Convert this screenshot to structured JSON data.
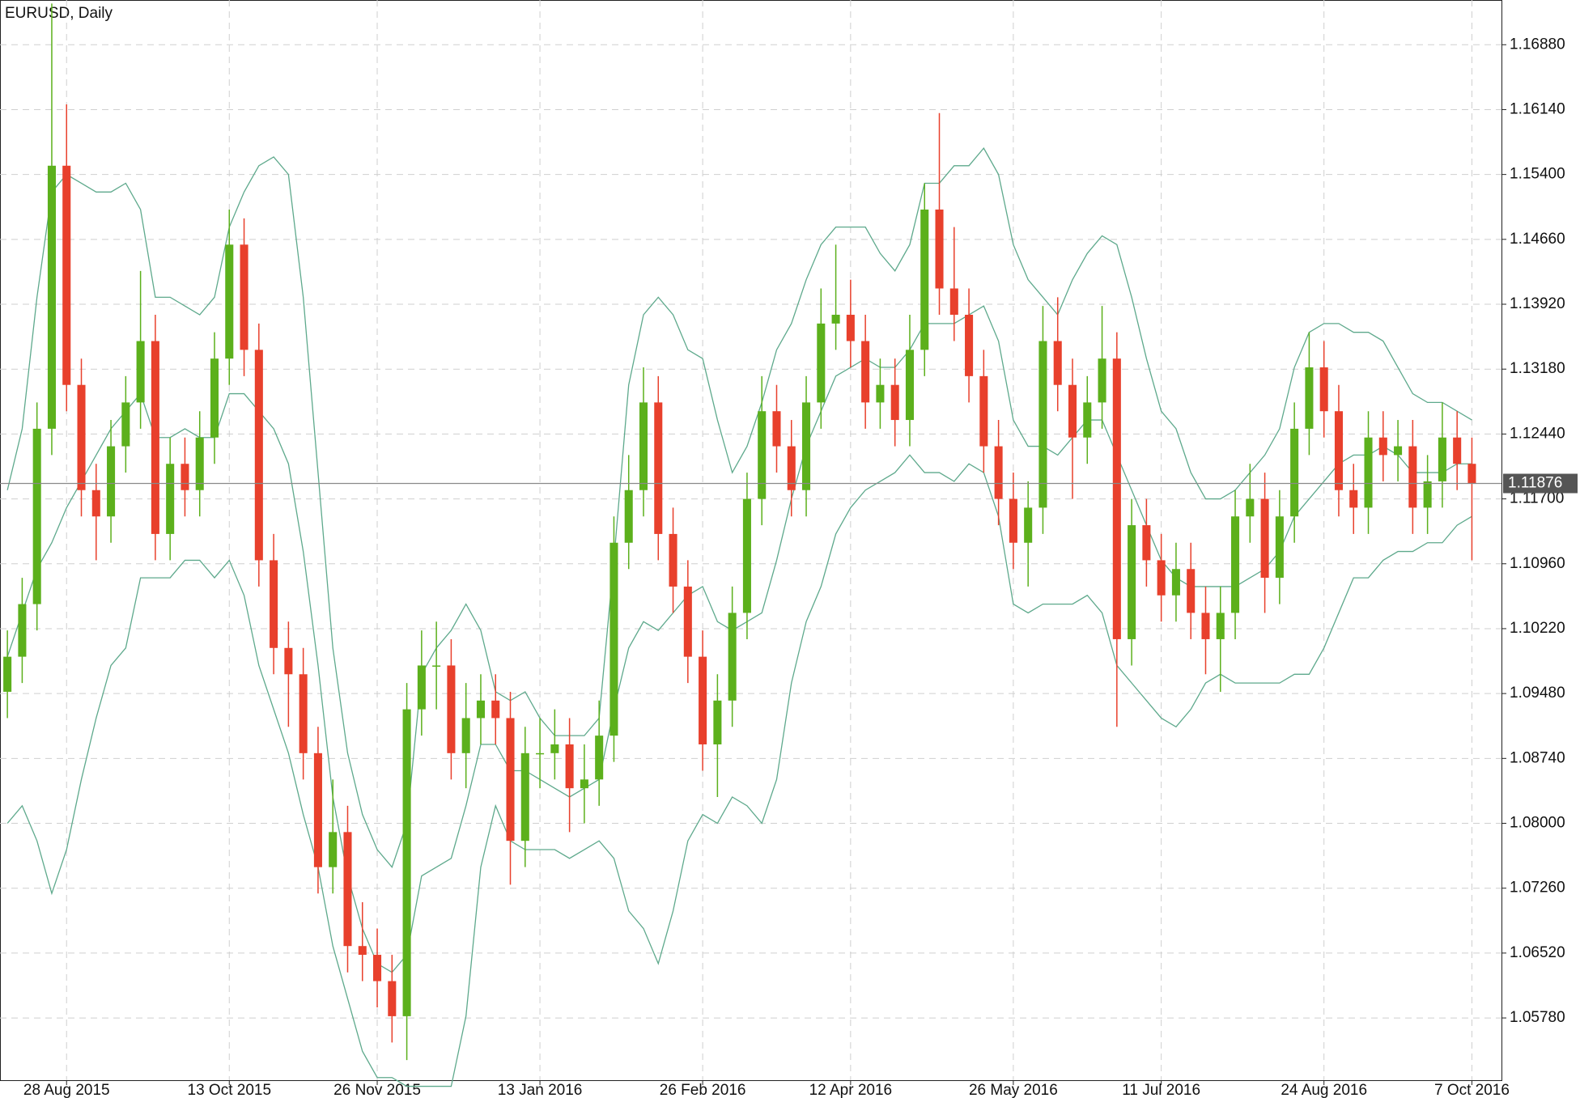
{
  "chart_data": {
    "type": "candlestick",
    "title": "EURUSD, Daily",
    "categories": [
      null,
      null,
      null,
      null,
      "28 Aug 2015",
      null,
      null,
      null,
      null,
      null,
      null,
      null,
      null,
      null,
      null,
      "13 Oct 2015",
      null,
      null,
      null,
      null,
      null,
      null,
      null,
      null,
      null,
      "26 Nov 2015",
      null,
      null,
      null,
      null,
      null,
      null,
      null,
      null,
      null,
      null,
      "13 Jan 2016",
      null,
      null,
      null,
      null,
      null,
      null,
      null,
      null,
      null,
      null,
      "26 Feb 2016",
      null,
      null,
      null,
      null,
      null,
      null,
      null,
      null,
      null,
      "12 Apr 2016",
      null,
      null,
      null,
      null,
      null,
      null,
      null,
      null,
      null,
      null,
      "26 May 2016",
      null,
      null,
      null,
      null,
      null,
      null,
      null,
      null,
      null,
      "11 Jul 2016",
      null,
      null,
      null,
      null,
      null,
      null,
      null,
      null,
      null,
      null,
      "24 Aug 2016",
      null,
      null,
      null,
      null,
      null,
      null,
      null,
      null,
      null,
      "7 Oct 2016"
    ],
    "open": [
      1.095,
      1.099,
      1.105,
      1.125,
      1.155,
      1.13,
      1.118,
      1.115,
      1.123,
      1.128,
      1.135,
      1.113,
      1.121,
      1.118,
      1.124,
      1.133,
      1.146,
      1.134,
      1.11,
      1.1,
      1.097,
      1.088,
      1.075,
      1.079,
      1.066,
      1.065,
      1.062,
      1.058,
      1.093,
      1.098,
      1.098,
      1.088,
      1.092,
      1.094,
      1.092,
      1.078,
      1.088,
      1.088,
      1.089,
      1.084,
      1.085,
      1.09,
      1.112,
      1.118,
      1.128,
      1.113,
      1.107,
      1.099,
      1.089,
      1.094,
      1.104,
      1.117,
      1.127,
      1.123,
      1.118,
      1.128,
      1.137,
      1.138,
      1.135,
      1.128,
      1.13,
      1.126,
      1.134,
      1.15,
      1.141,
      1.138,
      1.131,
      1.123,
      1.117,
      1.112,
      1.116,
      1.135,
      1.13,
      1.124,
      1.128,
      1.133,
      1.101,
      1.114,
      1.11,
      1.106,
      1.109,
      1.104,
      1.101,
      1.104,
      1.115,
      1.117,
      1.108,
      1.115,
      1.125,
      1.132,
      1.127,
      1.118,
      1.116,
      1.124,
      1.122,
      1.123,
      1.116,
      1.119,
      1.124,
      1.121
    ],
    "high": [
      1.102,
      1.108,
      1.128,
      1.1735,
      1.162,
      1.133,
      1.121,
      1.126,
      1.131,
      1.143,
      1.138,
      1.124,
      1.124,
      1.127,
      1.136,
      1.15,
      1.149,
      1.137,
      1.113,
      1.103,
      1.1,
      1.091,
      1.085,
      1.082,
      1.071,
      1.068,
      1.065,
      1.096,
      1.102,
      1.103,
      1.101,
      1.096,
      1.097,
      1.097,
      1.095,
      1.091,
      1.092,
      1.093,
      1.092,
      1.089,
      1.094,
      1.115,
      1.122,
      1.132,
      1.131,
      1.116,
      1.11,
      1.102,
      1.097,
      1.107,
      1.12,
      1.131,
      1.13,
      1.126,
      1.131,
      1.141,
      1.146,
      1.142,
      1.138,
      1.133,
      1.133,
      1.138,
      1.153,
      1.161,
      1.148,
      1.141,
      1.134,
      1.126,
      1.12,
      1.119,
      1.139,
      1.14,
      1.133,
      1.131,
      1.139,
      1.136,
      1.117,
      1.117,
      1.113,
      1.112,
      1.112,
      1.107,
      1.107,
      1.118,
      1.121,
      1.12,
      1.118,
      1.128,
      1.136,
      1.135,
      1.13,
      1.121,
      1.127,
      1.127,
      1.126,
      1.126,
      1.122,
      1.128,
      1.127,
      1.124
    ],
    "low": [
      1.092,
      1.096,
      1.102,
      1.122,
      1.127,
      1.115,
      1.11,
      1.112,
      1.12,
      1.125,
      1.11,
      1.11,
      1.115,
      1.115,
      1.121,
      1.13,
      1.131,
      1.107,
      1.097,
      1.091,
      1.085,
      1.072,
      1.072,
      1.063,
      1.062,
      1.059,
      1.055,
      1.053,
      1.09,
      1.093,
      1.085,
      1.084,
      1.089,
      1.089,
      1.073,
      1.075,
      1.084,
      1.085,
      1.079,
      1.08,
      1.082,
      1.087,
      1.109,
      1.115,
      1.11,
      1.104,
      1.096,
      1.086,
      1.083,
      1.091,
      1.101,
      1.114,
      1.12,
      1.115,
      1.115,
      1.125,
      1.134,
      1.132,
      1.125,
      1.125,
      1.123,
      1.123,
      1.131,
      1.138,
      1.135,
      1.128,
      1.12,
      1.114,
      1.109,
      1.107,
      1.113,
      1.127,
      1.117,
      1.121,
      1.125,
      1.091,
      1.098,
      1.107,
      1.103,
      1.103,
      1.101,
      1.097,
      1.095,
      1.101,
      1.112,
      1.104,
      1.105,
      1.112,
      1.122,
      1.124,
      1.115,
      1.113,
      1.113,
      1.119,
      1.119,
      1.113,
      1.113,
      1.116,
      1.118,
      1.11
    ],
    "close": [
      1.099,
      1.105,
      1.125,
      1.155,
      1.13,
      1.118,
      1.115,
      1.123,
      1.128,
      1.135,
      1.113,
      1.121,
      1.118,
      1.124,
      1.133,
      1.146,
      1.134,
      1.11,
      1.1,
      1.097,
      1.088,
      1.075,
      1.079,
      1.066,
      1.065,
      1.062,
      1.058,
      1.093,
      1.098,
      1.098,
      1.088,
      1.092,
      1.094,
      1.092,
      1.078,
      1.088,
      1.088,
      1.089,
      1.084,
      1.085,
      1.09,
      1.112,
      1.118,
      1.128,
      1.113,
      1.107,
      1.099,
      1.089,
      1.094,
      1.104,
      1.117,
      1.127,
      1.123,
      1.118,
      1.128,
      1.137,
      1.138,
      1.135,
      1.128,
      1.13,
      1.126,
      1.134,
      1.15,
      1.141,
      1.138,
      1.131,
      1.123,
      1.117,
      1.112,
      1.116,
      1.135,
      1.13,
      1.124,
      1.128,
      1.133,
      1.101,
      1.114,
      1.11,
      1.106,
      1.109,
      1.104,
      1.101,
      1.104,
      1.115,
      1.117,
      1.108,
      1.115,
      1.125,
      1.132,
      1.127,
      1.118,
      1.116,
      1.124,
      1.122,
      1.123,
      1.116,
      1.119,
      1.124,
      1.121,
      1.1188
    ],
    "bands": [
      {
        "values": [
          1.118,
          1.125,
          1.14,
          1.152,
          1.154,
          1.153,
          1.152,
          1.152,
          1.153,
          1.15,
          1.14,
          1.14,
          1.139,
          1.138,
          1.14,
          1.148,
          1.152,
          1.155,
          1.156,
          1.154,
          1.14,
          1.12,
          1.1,
          1.088,
          1.081,
          1.077,
          1.075,
          1.08,
          1.097,
          1.1,
          1.102,
          1.105,
          1.102,
          1.095,
          1.094,
          1.095,
          1.092,
          1.09,
          1.09,
          1.09,
          1.092,
          1.11,
          1.13,
          1.138,
          1.14,
          1.138,
          1.134,
          1.133,
          1.126,
          1.12,
          1.123,
          1.128,
          1.134,
          1.137,
          1.142,
          1.146,
          1.148,
          1.148,
          1.148,
          1.145,
          1.143,
          1.146,
          1.153,
          1.153,
          1.155,
          1.155,
          1.157,
          1.154,
          1.146,
          1.142,
          1.14,
          1.138,
          1.142,
          1.145,
          1.147,
          1.146,
          1.14,
          1.133,
          1.127,
          1.125,
          1.12,
          1.117,
          1.117,
          1.118,
          1.12,
          1.122,
          1.125,
          1.132,
          1.136,
          1.137,
          1.137,
          1.136,
          1.136,
          1.135,
          1.132,
          1.129,
          1.128,
          1.128,
          1.127,
          1.126
        ]
      },
      {
        "values": [
          1.099,
          1.104,
          1.109,
          1.112,
          1.116,
          1.119,
          1.122,
          1.125,
          1.127,
          1.129,
          1.124,
          1.124,
          1.125,
          1.124,
          1.124,
          1.129,
          1.129,
          1.127,
          1.125,
          1.121,
          1.111,
          1.098,
          1.083,
          1.074,
          1.068,
          1.064,
          1.063,
          1.065,
          1.074,
          1.075,
          1.076,
          1.082,
          1.089,
          1.089,
          1.086,
          1.086,
          1.085,
          1.084,
          1.083,
          1.084,
          1.085,
          1.093,
          1.1,
          1.103,
          1.102,
          1.104,
          1.106,
          1.107,
          1.103,
          1.102,
          1.103,
          1.104,
          1.11,
          1.117,
          1.123,
          1.127,
          1.131,
          1.132,
          1.133,
          1.132,
          1.132,
          1.134,
          1.137,
          1.137,
          1.137,
          1.138,
          1.139,
          1.135,
          1.126,
          1.123,
          1.123,
          1.122,
          1.124,
          1.126,
          1.126,
          1.122,
          1.118,
          1.114,
          1.11,
          1.108,
          1.107,
          1.107,
          1.107,
          1.107,
          1.108,
          1.109,
          1.111,
          1.115,
          1.117,
          1.119,
          1.121,
          1.122,
          1.122,
          1.123,
          1.122,
          1.12,
          1.12,
          1.12,
          1.121,
          1.121
        ]
      },
      {
        "values": [
          1.08,
          1.082,
          1.078,
          1.072,
          1.077,
          1.085,
          1.092,
          1.098,
          1.1,
          1.108,
          1.108,
          1.108,
          1.11,
          1.11,
          1.108,
          1.11,
          1.106,
          1.098,
          1.093,
          1.088,
          1.081,
          1.075,
          1.066,
          1.06,
          1.054,
          1.051,
          1.051,
          1.05,
          1.05,
          1.05,
          1.05,
          1.058,
          1.075,
          1.082,
          1.078,
          1.077,
          1.077,
          1.077,
          1.076,
          1.077,
          1.078,
          1.076,
          1.07,
          1.068,
          1.064,
          1.07,
          1.078,
          1.081,
          1.08,
          1.083,
          1.082,
          1.08,
          1.085,
          1.096,
          1.103,
          1.107,
          1.113,
          1.116,
          1.118,
          1.119,
          1.12,
          1.122,
          1.12,
          1.12,
          1.119,
          1.121,
          1.12,
          1.115,
          1.105,
          1.104,
          1.105,
          1.105,
          1.105,
          1.106,
          1.104,
          1.098,
          1.096,
          1.094,
          1.092,
          1.091,
          1.093,
          1.096,
          1.097,
          1.096,
          1.096,
          1.096,
          1.096,
          1.097,
          1.097,
          1.1,
          1.104,
          1.108,
          1.108,
          1.11,
          1.111,
          1.111,
          1.112,
          1.112,
          1.114,
          1.115
        ]
      }
    ],
    "up_color": "#5cb01c",
    "down_color": "#e8402c",
    "band_color": "#5ea98c",
    "current_price": 1.11876,
    "ylim": [
      1.0507,
      1.1739
    ],
    "yticks": [
      {
        "value": 1.0578,
        "label": "1.05780"
      },
      {
        "value": 1.0652,
        "label": "1.06520"
      },
      {
        "value": 1.0726,
        "label": "1.07260"
      },
      {
        "value": 1.08,
        "label": "1.08000"
      },
      {
        "value": 1.0874,
        "label": "1.08740"
      },
      {
        "value": 1.0948,
        "label": "1.09480"
      },
      {
        "value": 1.1022,
        "label": "1.10220"
      },
      {
        "value": 1.1096,
        "label": "1.10960"
      },
      {
        "value": 1.117,
        "label": "1.11700"
      },
      {
        "value": 1.1244,
        "label": "1.12440"
      },
      {
        "value": 1.1318,
        "label": "1.13180"
      },
      {
        "value": 1.1392,
        "label": "1.13920"
      },
      {
        "value": 1.1466,
        "label": "1.14660"
      },
      {
        "value": 1.154,
        "label": "1.15400"
      },
      {
        "value": 1.1614,
        "label": "1.16140"
      },
      {
        "value": 1.1688,
        "label": "1.16880"
      }
    ],
    "grid": true
  }
}
